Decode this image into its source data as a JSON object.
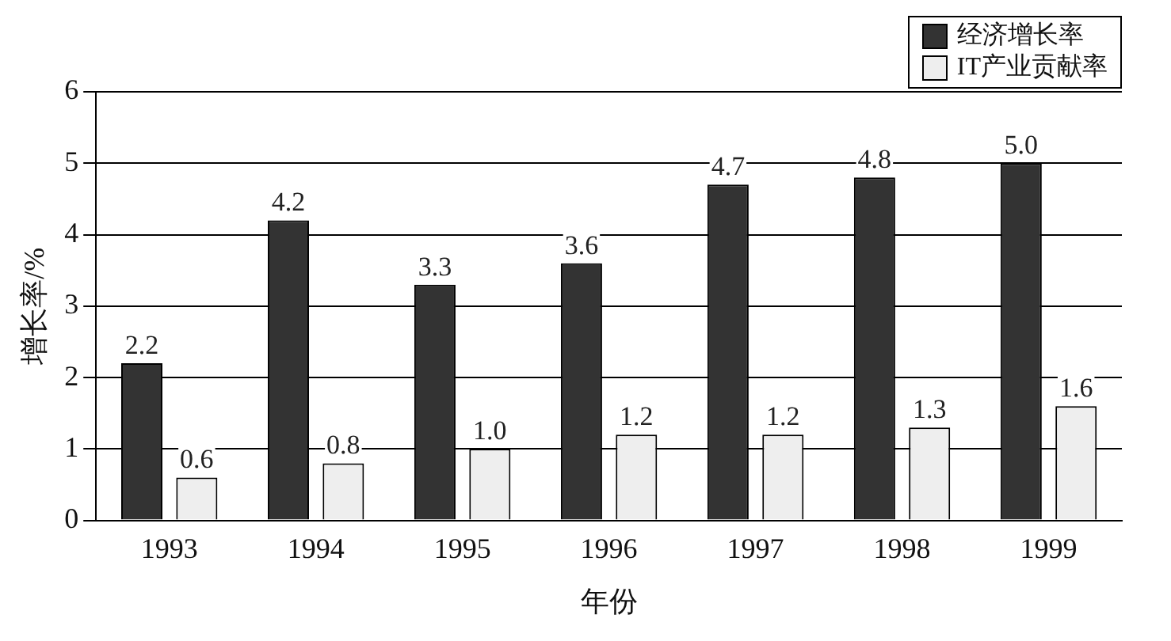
{
  "chart_data": {
    "type": "bar",
    "xlabel": "年份",
    "ylabel": "增长率/%",
    "categories": [
      "1993",
      "1994",
      "1995",
      "1996",
      "1997",
      "1998",
      "1999"
    ],
    "series": [
      {
        "name": "经济增长率",
        "color": "#333333",
        "values": [
          2.2,
          4.2,
          3.3,
          3.6,
          4.7,
          4.8,
          5.0
        ],
        "value_labels": [
          "2.2",
          "4.2",
          "3.3",
          "3.6",
          "4.7",
          "4.8",
          "5.0"
        ]
      },
      {
        "name": "IT产业贡献率",
        "color": "#eeeeee",
        "values": [
          0.6,
          0.8,
          1.0,
          1.2,
          1.2,
          1.3,
          1.6
        ],
        "value_labels": [
          "0.6",
          "0.8",
          "1.0",
          "1.2",
          "1.2",
          "1.3",
          "1.6"
        ]
      }
    ],
    "ylim": [
      0,
      6
    ],
    "yticks": [
      0,
      1,
      2,
      3,
      4,
      5,
      6
    ],
    "grid": "y",
    "legend": "top right"
  }
}
